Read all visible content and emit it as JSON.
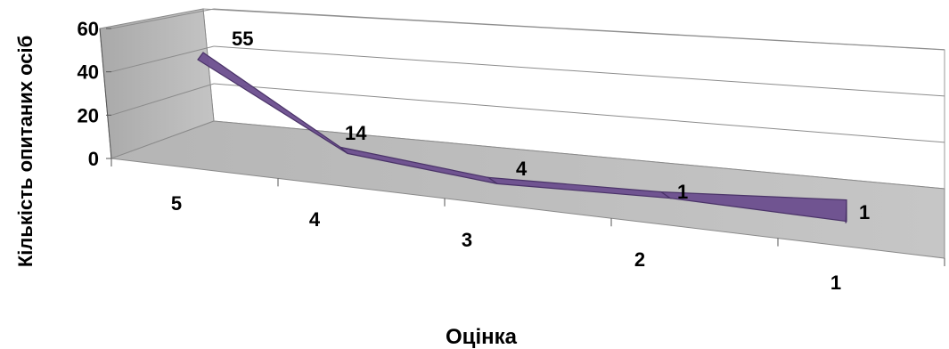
{
  "chart_data": {
    "type": "line",
    "style": "3d-ribbon",
    "categories": [
      "5",
      "4",
      "3",
      "2",
      "1"
    ],
    "values": [
      55,
      14,
      4,
      1,
      1
    ],
    "data_labels": [
      "55",
      "14",
      "4",
      "1",
      "1"
    ],
    "xlabel": "Оцінка",
    "ylabel": "Кількість опитаних осіб",
    "ylim": [
      0,
      60
    ],
    "yticks": [
      "0",
      "20",
      "40",
      "60"
    ],
    "grid": true,
    "legend": "none",
    "colors": {
      "series": "#6B4E8E",
      "series_edge": "#4A3368",
      "back_wall": "#FFFFFF",
      "side_wall": "#B3B3B3",
      "floor": "#B8B8B8",
      "gridline": "#8C8C8C"
    }
  }
}
